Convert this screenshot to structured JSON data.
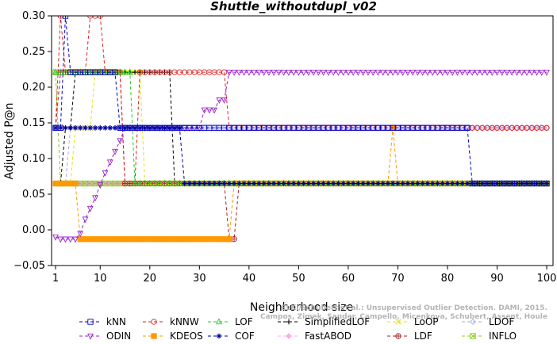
{
  "chart_data": {
    "type": "line",
    "title": "Shuttle_withoutdupl_v02",
    "xlabel": "Neighborhood size",
    "ylabel": "Adjusted P@n",
    "xlim": [
      0,
      100
    ],
    "ylim": [
      -0.05,
      0.3
    ],
    "xticks": [
      1,
      10,
      20,
      30,
      40,
      50,
      60,
      70,
      80,
      90,
      100
    ],
    "yticks": [
      -0.05,
      0.0,
      0.05,
      0.1,
      0.15,
      0.2,
      0.25,
      0.3
    ],
    "ytick_labels": [
      "−0.05",
      "0.00",
      "0.05",
      "0.10",
      "0.15",
      "0.20",
      "0.25",
      "0.30"
    ],
    "legend_position": "bottom",
    "watermark": [
      "ELKI/Schubert et al.: Unsupervised Outlier Detection. DAMI, 2015.",
      "Campos, Zimek, Sander, Campello, Micenkova, Schubert, Assent, Houle"
    ],
    "series": [
      {
        "name": "kNN",
        "color": "#0000cc",
        "marker": "square",
        "segments": [
          [
            1,
            2,
            0.143
          ],
          [
            3,
            3,
            0.3
          ],
          [
            4,
            13,
            0.221
          ],
          [
            14,
            84,
            0.143
          ],
          [
            85,
            100,
            0.065
          ]
        ]
      },
      {
        "name": "kNNW",
        "color": "#dd2222",
        "marker": "circle",
        "segments": [
          [
            1,
            1,
            0.143
          ],
          [
            2,
            2,
            0.3
          ],
          [
            3,
            7,
            0.221
          ],
          [
            8,
            10,
            0.3
          ],
          [
            11,
            14,
            0.221
          ],
          [
            15,
            17,
            0.065
          ],
          [
            18,
            35,
            0.221
          ],
          [
            36,
            84,
            0.143
          ],
          [
            85,
            100,
            0.143
          ]
        ]
      },
      {
        "name": "LOF",
        "color": "#22cc22",
        "marker": "triangle-up",
        "segments": [
          [
            1,
            1,
            0.221
          ],
          [
            2,
            16,
            0.221
          ],
          [
            17,
            100,
            0.065
          ]
        ]
      },
      {
        "name": "SimplifiedLOF",
        "color": "#000000",
        "marker": "plus",
        "segments": [
          [
            1,
            2,
            0.065
          ],
          [
            3,
            4,
            0.143
          ],
          [
            5,
            24,
            0.221
          ],
          [
            25,
            100,
            0.065
          ]
        ]
      },
      {
        "name": "LoOP",
        "color": "#e6e600",
        "marker": "x",
        "segments": [
          [
            1,
            4,
            0.065
          ],
          [
            5,
            8,
            0.143
          ],
          [
            9,
            18,
            0.221
          ],
          [
            19,
            100,
            0.065
          ]
        ]
      },
      {
        "name": "LDOF",
        "color": "#aaaaee",
        "marker": "diamond",
        "segments": [
          [
            1,
            3,
            0.065
          ],
          [
            4,
            10,
            0.143
          ],
          [
            11,
            100,
            0.143
          ]
        ]
      },
      {
        "name": "ODIN",
        "color": "#9922cc",
        "marker": "triangle-down",
        "values": [
          [
            1,
            -0.01
          ],
          [
            2,
            -0.013
          ],
          [
            3,
            -0.013
          ],
          [
            4,
            -0.013
          ],
          [
            5,
            -0.013
          ],
          [
            6,
            -0.005
          ],
          [
            7,
            0.015
          ],
          [
            8,
            0.03
          ],
          [
            9,
            0.045
          ],
          [
            10,
            0.063
          ],
          [
            11,
            0.08
          ],
          [
            12,
            0.095
          ],
          [
            13,
            0.11
          ],
          [
            14,
            0.125
          ],
          [
            15,
            0.143
          ],
          [
            31,
            0.168
          ],
          [
            32,
            0.168
          ],
          [
            33,
            0.168
          ],
          [
            34,
            0.182
          ],
          [
            35,
            0.182
          ],
          [
            36,
            0.221
          ],
          [
            100,
            0.221
          ]
        ],
        "fill_after": 36
      },
      {
        "name": "KDEOS",
        "color": "#ff9900",
        "marker": "square-filled",
        "segments": [
          [
            1,
            1,
            0.065
          ],
          [
            2,
            5,
            0.065
          ],
          [
            6,
            18,
            -0.013
          ],
          [
            19,
            36,
            -0.013
          ],
          [
            37,
            68,
            0.065
          ],
          [
            69,
            69,
            0.143
          ],
          [
            70,
            100,
            0.065
          ]
        ]
      },
      {
        "name": "COF",
        "color": "#000099",
        "marker": "asterisk",
        "segments": [
          [
            1,
            1,
            0.143
          ],
          [
            2,
            26,
            0.143
          ],
          [
            27,
            100,
            0.065
          ]
        ]
      },
      {
        "name": "FastABOD",
        "color": "#ffaaee",
        "marker": "diamond-filled",
        "segments": [
          [
            1,
            100,
            0.065
          ]
        ]
      },
      {
        "name": "LDF",
        "color": "#aa2222",
        "marker": "circle-plus",
        "segments": [
          [
            1,
            1,
            0.143
          ],
          [
            2,
            14,
            0.221
          ],
          [
            15,
            17,
            0.065
          ],
          [
            18,
            35,
            0.065
          ],
          [
            36,
            37,
            -0.013
          ],
          [
            38,
            100,
            0.065
          ]
        ]
      },
      {
        "name": "INFLO",
        "color": "#88cc22",
        "marker": "square-x",
        "segments": [
          [
            1,
            1,
            0.221
          ],
          [
            2,
            2,
            0.065
          ],
          [
            3,
            100,
            0.065
          ]
        ]
      }
    ]
  }
}
